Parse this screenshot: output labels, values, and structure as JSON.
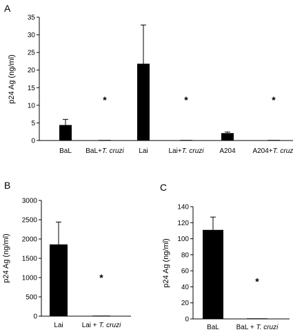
{
  "chart_data": [
    {
      "panel": "A",
      "type": "bar",
      "ylabel": "p24 Ag (ng/ml)",
      "ylim": [
        0,
        35
      ],
      "yticks": [
        0,
        5,
        10,
        15,
        20,
        25,
        30,
        35
      ],
      "categories": [
        [
          {
            "t": "BaL",
            "i": false
          }
        ],
        [
          {
            "t": "BaL+",
            "i": false
          },
          {
            "t": "T. cruzi",
            "i": true
          }
        ],
        [
          {
            "t": "Lai",
            "i": false
          }
        ],
        [
          {
            "t": "Lai+",
            "i": false
          },
          {
            "t": "T. cruzi",
            "i": true
          }
        ],
        [
          {
            "t": "A204",
            "i": false
          }
        ],
        [
          {
            "t": "A204+",
            "i": false
          },
          {
            "t": "T. cruzi",
            "i": true
          }
        ]
      ],
      "values": [
        4.4,
        0.1,
        21.8,
        0.1,
        2.1,
        0.05
      ],
      "errors": [
        1.6,
        0,
        11.0,
        0,
        0.3,
        0
      ],
      "annotations": [
        "",
        "*",
        "",
        "*",
        "",
        "*"
      ]
    },
    {
      "panel": "B",
      "type": "bar",
      "ylabel": "p24 Ag (ng/ml)",
      "ylim": [
        0,
        3000
      ],
      "yticks": [
        0,
        500,
        1000,
        1500,
        2000,
        2500,
        3000
      ],
      "categories": [
        [
          {
            "t": "Lai",
            "i": false
          }
        ],
        [
          {
            "t": "Lai + ",
            "i": false
          },
          {
            "t": "T. cruzi",
            "i": true
          }
        ]
      ],
      "values": [
        1860,
        8
      ],
      "errors": [
        580,
        0
      ],
      "annotations": [
        "",
        "*"
      ]
    },
    {
      "panel": "C",
      "type": "bar",
      "ylabel": "p24 Ag (ng/ml)",
      "ylim": [
        0,
        140
      ],
      "yticks": [
        0,
        20,
        40,
        60,
        80,
        100,
        120,
        140
      ],
      "categories": [
        [
          {
            "t": "BaL",
            "i": false
          }
        ],
        [
          {
            "t": "BaL + ",
            "i": false
          },
          {
            "t": "T. cruzi",
            "i": true
          }
        ]
      ],
      "values": [
        111,
        0.5
      ],
      "errors": [
        16,
        0
      ],
      "annotations": [
        "",
        "*"
      ]
    }
  ],
  "colors": {
    "bar": "#000000",
    "axis": "#000000"
  }
}
